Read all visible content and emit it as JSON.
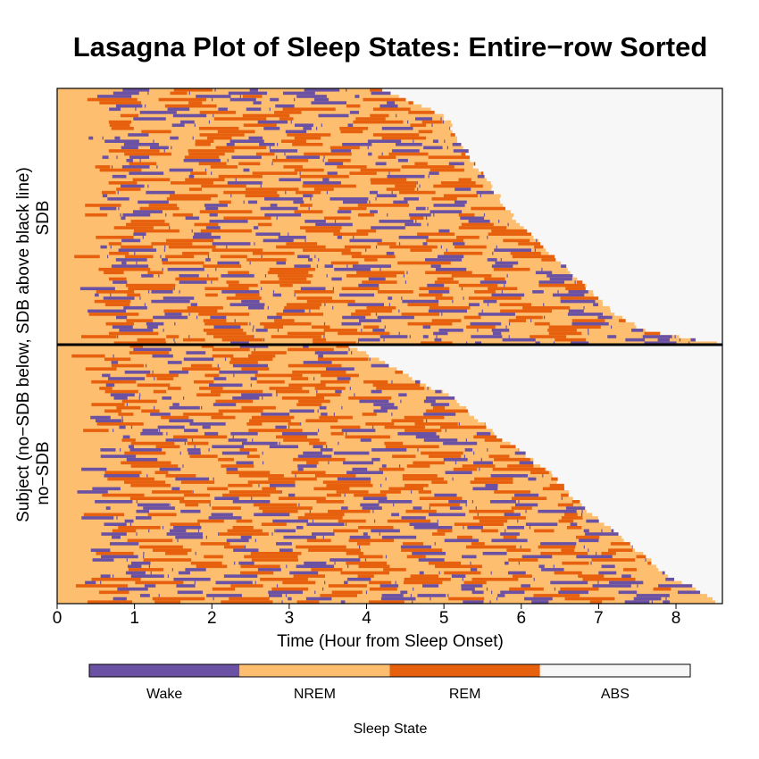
{
  "chart_data": {
    "type": "heatmap",
    "title": "Lasagna Plot of Sleep States: Entire−row Sorted",
    "xlabel": "Time (Hour from Sleep Onset)",
    "ylabel": "Subject (no−SDB below, SDB above black line)",
    "group_labels": {
      "top": "SDB",
      "bottom": "no−SDB"
    },
    "x_ticks": [
      "0",
      "1",
      "2",
      "3",
      "4",
      "5",
      "6",
      "7",
      "8"
    ],
    "xlim": [
      0,
      8.6
    ],
    "states": [
      {
        "name": "Wake",
        "color": "#6a51a3"
      },
      {
        "name": "NREM",
        "color": "#fdbe6f"
      },
      {
        "name": "REM",
        "color": "#e6600d"
      },
      {
        "name": "ABS",
        "color": "#f7f7f7"
      }
    ],
    "legend_title": "Sleep State",
    "groups": [
      {
        "name": "SDB",
        "subject_count": 80,
        "sort": "entire-row, by recording length",
        "recording_end_hours": [
          [
            0,
            4.2
          ],
          [
            0.1,
            5.0
          ],
          [
            0.3,
            5.4
          ],
          [
            0.5,
            5.9
          ],
          [
            0.6,
            6.2
          ],
          [
            0.7,
            6.6
          ],
          [
            0.8,
            6.9
          ],
          [
            0.9,
            7.3
          ],
          [
            0.95,
            7.6
          ],
          [
            1.0,
            8.5
          ]
        ]
      },
      {
        "name": "no-SDB",
        "subject_count": 80,
        "sort": "entire-row, by recording length",
        "recording_end_hours": [
          [
            0,
            3.8
          ],
          [
            0.2,
            5.1
          ],
          [
            0.35,
            5.7
          ],
          [
            0.5,
            6.4
          ],
          [
            0.6,
            6.7
          ],
          [
            0.7,
            7.1
          ],
          [
            0.8,
            7.5
          ],
          [
            0.9,
            7.9
          ],
          [
            0.95,
            8.3
          ],
          [
            1.0,
            8.5
          ]
        ]
      }
    ]
  }
}
